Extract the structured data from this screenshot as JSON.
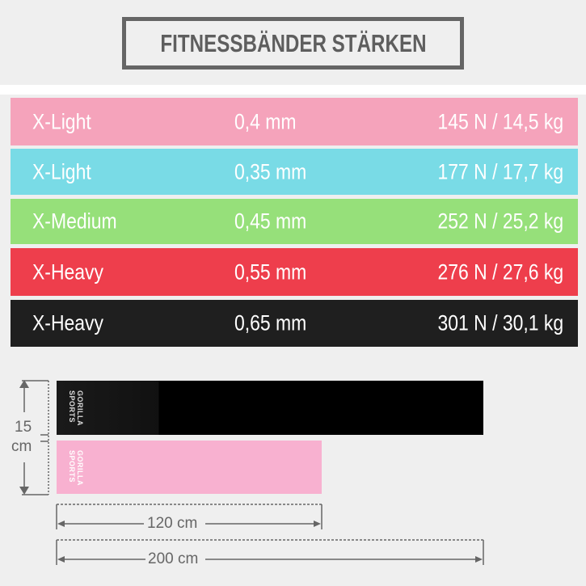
{
  "title": "FITNESSBÄNDER STÄRKEN",
  "rows": [
    {
      "level": "X-Light",
      "thickness": "0,4 mm",
      "resistance": "145 N / 14,5 kg",
      "color": "#f5a3bb"
    },
    {
      "level": "X-Light",
      "thickness": "0,35 mm",
      "resistance": "177 N / 17,7 kg",
      "color": "#79dbe6"
    },
    {
      "level": "X-Medium",
      "thickness": "0,45 mm",
      "resistance": "252 N / 25,2 kg",
      "color": "#96e07a"
    },
    {
      "level": "X-Heavy",
      "thickness": "0,55 mm",
      "resistance": "276 N / 27,6 kg",
      "color": "#ee3e4c"
    },
    {
      "level": "X-Heavy",
      "thickness": "0,65 mm",
      "resistance": "301 N / 30,1 kg",
      "color": "#1f1f1f"
    }
  ],
  "bands": {
    "logo": "GORILLA SPORTS",
    "black_color": "#000000",
    "pink_color": "#f8b1d0"
  },
  "dimensions": {
    "width_value": "15",
    "width_unit": "cm",
    "short_length": "120 cm",
    "long_length": "200 cm"
  }
}
